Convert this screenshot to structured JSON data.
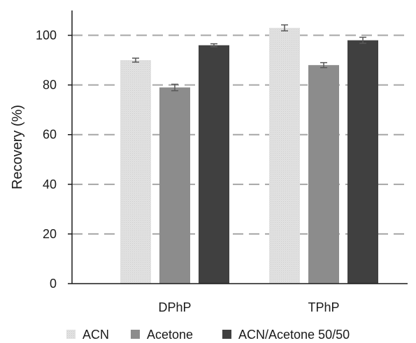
{
  "chart_data": {
    "type": "bar",
    "title": "",
    "xlabel": "",
    "ylabel": "Recovery (%)",
    "ylim": [
      0,
      110
    ],
    "yticks": [
      0,
      20,
      40,
      60,
      80,
      100
    ],
    "grid": "horizontal dashed",
    "legend_position": "bottom",
    "categories": [
      "DPhP",
      "TPhP"
    ],
    "series": [
      {
        "name": "ACN",
        "color": "#dcdcdc",
        "values": [
          90,
          103
        ],
        "errors": [
          0.8,
          1.2
        ]
      },
      {
        "name": "Acetone",
        "color": "#8c8c8c",
        "values": [
          79,
          88
        ],
        "errors": [
          1.3,
          1.0
        ]
      },
      {
        "name": "ACN/Acetone 50/50",
        "color": "#404040",
        "values": [
          96,
          98
        ],
        "errors": [
          0.6,
          1.2
        ]
      }
    ]
  }
}
